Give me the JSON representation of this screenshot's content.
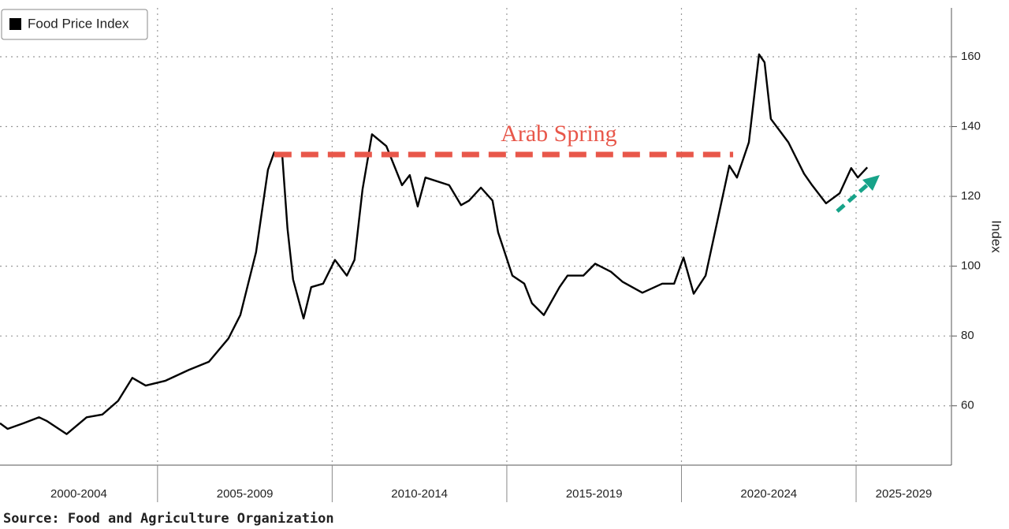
{
  "chart_data": {
    "type": "line",
    "legend": "Food Price Index",
    "color": "#000000",
    "y_label": "Index",
    "source": "Source: Food and Agriculture Organization",
    "categories": [
      "2000-2004",
      "2005-2009",
      "2010-2014",
      "2015-2019",
      "2020-2024",
      "2025-2029"
    ],
    "xlim": [
      2000.49,
      2027.73
    ],
    "xticks": [
      2005,
      2010,
      2015,
      2020,
      2025
    ],
    "ylim": [
      43,
      174
    ],
    "yticks": [
      60,
      80,
      100,
      120,
      140,
      160
    ],
    "grid": true,
    "x": [
      2000.49,
      2000.71,
      2001.16,
      2001.61,
      2001.84,
      2002.4,
      2002.97,
      2003.42,
      2003.87,
      2004.28,
      2004.66,
      2005.23,
      2005.9,
      2006.47,
      2007.03,
      2007.37,
      2007.82,
      2008.16,
      2008.34,
      2008.57,
      2008.72,
      2008.88,
      2009.18,
      2009.4,
      2009.74,
      2010.08,
      2010.42,
      2010.64,
      2010.87,
      2011.14,
      2011.55,
      2012.0,
      2012.22,
      2012.45,
      2012.67,
      2013.35,
      2013.69,
      2013.92,
      2014.26,
      2014.59,
      2014.75,
      2015.16,
      2015.5,
      2015.72,
      2016.06,
      2016.51,
      2016.74,
      2017.19,
      2017.53,
      2017.98,
      2018.32,
      2018.88,
      2019.45,
      2019.79,
      2020.06,
      2020.35,
      2020.69,
      2021.03,
      2021.37,
      2021.59,
      2021.93,
      2022.22,
      2022.38,
      2022.56,
      2023.06,
      2023.51,
      2023.74,
      2024.14,
      2024.53,
      2024.86,
      2025.05,
      2025.32
    ],
    "values": [
      55.0,
      53.4,
      55.0,
      56.7,
      55.6,
      51.9,
      56.7,
      57.5,
      61.4,
      68.0,
      65.8,
      67.2,
      70.3,
      72.6,
      79.3,
      86.0,
      104.0,
      127.6,
      132.6,
      132.0,
      110.8,
      96.2,
      85.0,
      94.0,
      95.0,
      101.8,
      97.3,
      101.8,
      122.0,
      137.8,
      134.4,
      123.2,
      126.1,
      117.1,
      125.4,
      123.2,
      117.5,
      118.8,
      122.5,
      118.8,
      109.7,
      97.3,
      95.0,
      89.4,
      86.0,
      94.0,
      97.3,
      97.3,
      100.7,
      98.4,
      95.5,
      92.4,
      95.0,
      95.0,
      102.5,
      92.1,
      97.3,
      113.0,
      128.8,
      125.4,
      135.5,
      160.7,
      158.4,
      142.2,
      135.5,
      126.5,
      123.2,
      118.0,
      120.9,
      128.1,
      125.4,
      128.3
    ],
    "reference_line": {
      "label": "Arab Spring",
      "y": 132,
      "x": [
        2008.34,
        2021.48
      ],
      "color": "#e8574a"
    }
  }
}
